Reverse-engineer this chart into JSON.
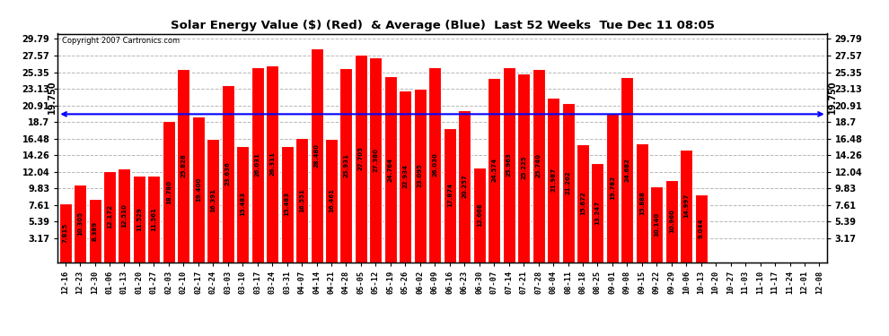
{
  "title": "Solar Energy Value ($) (Red)  & Average (Blue)  Last 52 Weeks  Tue Dec 11 08:05",
  "copyright": "Copyright 2007 Cartronics.com",
  "average_line": 19.75,
  "average_label": "19.750",
  "yticks_left": [
    3.17,
    5.39,
    7.61,
    9.83,
    12.04,
    14.26,
    16.48,
    18.7,
    20.91,
    23.13,
    25.35,
    27.57,
    29.79
  ],
  "ylim": [
    0,
    30.5
  ],
  "bar_color": "#ff0000",
  "bar_edge_color": "#ffffff",
  "avg_line_color": "#0000ff",
  "background_color": "#ffffff",
  "grid_color": "#b0b0b0",
  "categories": [
    "12-16",
    "12-23",
    "12-30",
    "01-06",
    "01-13",
    "01-20",
    "01-27",
    "02-03",
    "02-10",
    "02-17",
    "02-24",
    "03-03",
    "03-10",
    "03-17",
    "03-24",
    "03-31",
    "04-07",
    "04-14",
    "04-21",
    "04-28",
    "05-05",
    "05-12",
    "05-19",
    "05-26",
    "06-02",
    "06-09",
    "06-16",
    "06-23",
    "06-30",
    "07-07",
    "07-14",
    "07-21",
    "07-28",
    "08-04",
    "08-11",
    "08-18",
    "08-25",
    "09-01",
    "09-08",
    "09-15",
    "09-22",
    "09-29",
    "10-06",
    "10-13",
    "10-20",
    "10-27",
    "11-03",
    "11-10",
    "11-17",
    "11-24",
    "12-01",
    "12-08"
  ],
  "values": [
    7.815,
    10.305,
    8.389,
    12.172,
    12.51,
    11.529,
    11.561,
    18.78,
    25.828,
    19.4,
    16.391,
    23.636,
    15.483,
    26.031,
    26.311,
    15.483,
    16.551,
    28.48,
    16.461,
    25.931,
    27.705,
    27.38,
    24.764,
    22.934,
    23.095,
    26.03,
    17.874,
    20.257,
    12.668,
    24.574,
    25.963,
    25.225,
    25.74,
    21.987,
    21.262,
    15.672,
    13.247,
    19.782,
    24.682,
    15.888,
    10.14,
    10.96,
    14.997,
    9.044,
    0,
    0,
    0,
    0,
    0,
    0,
    0,
    0
  ],
  "values_display": [
    "7.815",
    "10.305",
    "8.389",
    "12.172",
    "12.510",
    "11.529",
    "11.561",
    "18.780",
    "25.828",
    "19.400",
    "16.391",
    "23.636",
    "15.483",
    "26.031",
    "26.311",
    "15.483",
    "16.551",
    "28.480",
    "16.461",
    "25.931",
    "27.705",
    "27.380",
    "24.764",
    "22.934",
    "23.095",
    "26.030",
    "17.874",
    "20.257",
    "12.668",
    "24.574",
    "25.963",
    "25.225",
    "25.740",
    "21.987",
    "21.262",
    "15.672",
    "13.247",
    "19.782",
    "24.682",
    "15.888",
    "10.140",
    "10.960",
    "14.997",
    "9.044",
    "",
    "",
    "",
    "",
    "",
    "",
    "",
    ""
  ]
}
